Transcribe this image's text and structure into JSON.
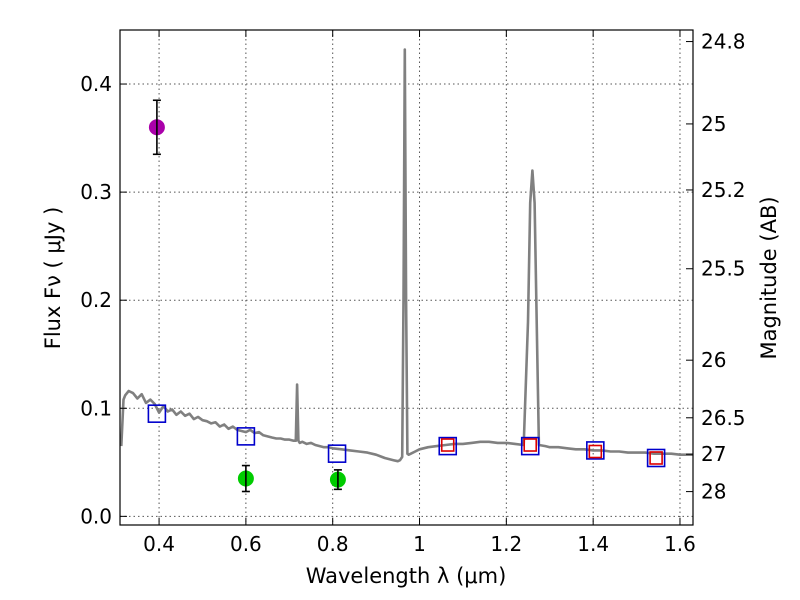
{
  "chart_data": {
    "type": "line",
    "title": "",
    "xlabel": "Wavelength  λ (μm)",
    "ylabel": "Flux  Fν  ( μJy )",
    "ylabel_right": "Magnitude (AB)",
    "xlim": [
      0.31,
      1.63
    ],
    "ylim": [
      -0.008,
      0.45
    ],
    "grid": true,
    "x_ticks": [
      0.4,
      0.6,
      0.8,
      1.0,
      1.2,
      1.4,
      1.6
    ],
    "x_tick_labels": [
      "0.4",
      "0.6",
      "0.8",
      "1",
      "1.2",
      "1.4",
      "1.6"
    ],
    "y_ticks": [
      0.0,
      0.1,
      0.2,
      0.3,
      0.4
    ],
    "y_tick_labels": [
      "0.0",
      "0.1",
      "0.2",
      "0.3",
      "0.4"
    ],
    "right_ticks": [
      {
        "label": "24.8",
        "flux": 0.4393
      },
      {
        "label": "25",
        "flux": 0.3631
      },
      {
        "label": "25.2",
        "flux": 0.302
      },
      {
        "label": "25.5",
        "flux": 0.2291
      },
      {
        "label": "26",
        "flux": 0.1445
      },
      {
        "label": "26.5",
        "flux": 0.0912
      },
      {
        "label": "27",
        "flux": 0.0575
      },
      {
        "label": "28",
        "flux": 0.0229
      }
    ],
    "series": [
      {
        "name": "model spectrum",
        "kind": "line",
        "color": "#808080",
        "x": [
          0.313,
          0.318,
          0.322,
          0.33,
          0.34,
          0.35,
          0.36,
          0.37,
          0.38,
          0.39,
          0.4,
          0.41,
          0.42,
          0.43,
          0.44,
          0.45,
          0.46,
          0.47,
          0.48,
          0.49,
          0.5,
          0.51,
          0.52,
          0.53,
          0.54,
          0.55,
          0.56,
          0.57,
          0.58,
          0.59,
          0.6,
          0.61,
          0.62,
          0.63,
          0.64,
          0.65,
          0.66,
          0.67,
          0.68,
          0.69,
          0.7,
          0.71,
          0.715,
          0.718,
          0.721,
          0.724,
          0.73,
          0.74,
          0.75,
          0.76,
          0.77,
          0.78,
          0.79,
          0.8,
          0.82,
          0.84,
          0.86,
          0.88,
          0.9,
          0.92,
          0.94,
          0.95,
          0.955,
          0.96,
          0.963,
          0.966,
          0.969,
          0.972,
          0.975,
          0.98,
          0.99,
          1.0,
          1.02,
          1.04,
          1.06,
          1.08,
          1.1,
          1.12,
          1.14,
          1.16,
          1.18,
          1.2,
          1.22,
          1.24,
          1.25,
          1.255,
          1.26,
          1.265,
          1.27,
          1.275,
          1.29,
          1.3,
          1.32,
          1.34,
          1.36,
          1.38,
          1.4,
          1.42,
          1.44,
          1.46,
          1.48,
          1.5,
          1.52,
          1.54,
          1.56,
          1.58,
          1.6,
          1.63
        ],
        "y": [
          0.065,
          0.108,
          0.112,
          0.116,
          0.114,
          0.109,
          0.113,
          0.105,
          0.108,
          0.104,
          0.096,
          0.102,
          0.097,
          0.099,
          0.094,
          0.097,
          0.093,
          0.095,
          0.09,
          0.092,
          0.089,
          0.088,
          0.086,
          0.087,
          0.083,
          0.085,
          0.081,
          0.083,
          0.08,
          0.079,
          0.078,
          0.08,
          0.077,
          0.078,
          0.075,
          0.074,
          0.073,
          0.072,
          0.072,
          0.071,
          0.071,
          0.07,
          0.07,
          0.122,
          0.07,
          0.068,
          0.069,
          0.067,
          0.068,
          0.066,
          0.065,
          0.064,
          0.064,
          0.063,
          0.062,
          0.061,
          0.06,
          0.059,
          0.057,
          0.054,
          0.052,
          0.051,
          0.052,
          0.055,
          0.2,
          0.432,
          0.2,
          0.058,
          0.057,
          0.058,
          0.06,
          0.062,
          0.064,
          0.065,
          0.066,
          0.067,
          0.067,
          0.068,
          0.069,
          0.069,
          0.068,
          0.068,
          0.067,
          0.066,
          0.18,
          0.29,
          0.32,
          0.29,
          0.18,
          0.066,
          0.065,
          0.064,
          0.064,
          0.063,
          0.062,
          0.062,
          0.061,
          0.061,
          0.06,
          0.06,
          0.059,
          0.059,
          0.059,
          0.058,
          0.058,
          0.058,
          0.057,
          0.057
        ]
      },
      {
        "name": "observed photometry (purple)",
        "kind": "points",
        "color": "#aa00aa",
        "points": [
          {
            "x": 0.395,
            "y": 0.36,
            "err": 0.025
          }
        ]
      },
      {
        "name": "observed photometry (green)",
        "kind": "points",
        "color": "#00cc00",
        "points": [
          {
            "x": 0.6,
            "y": 0.035,
            "err": 0.012
          },
          {
            "x": 0.812,
            "y": 0.034,
            "err": 0.009
          }
        ]
      },
      {
        "name": "model photometry (blue squares)",
        "kind": "squares",
        "color": "#0000cc",
        "points": [
          {
            "x": 0.395,
            "y": 0.095
          },
          {
            "x": 0.6,
            "y": 0.074
          },
          {
            "x": 0.81,
            "y": 0.058
          },
          {
            "x": 1.065,
            "y": 0.065
          },
          {
            "x": 1.255,
            "y": 0.065
          },
          {
            "x": 1.405,
            "y": 0.061
          },
          {
            "x": 1.545,
            "y": 0.054
          }
        ]
      },
      {
        "name": "model photometry (red squares)",
        "kind": "squares",
        "color": "#dd0000",
        "points": [
          {
            "x": 1.065,
            "y": 0.066
          },
          {
            "x": 1.255,
            "y": 0.066
          },
          {
            "x": 1.405,
            "y": 0.06
          },
          {
            "x": 1.545,
            "y": 0.054
          }
        ]
      }
    ]
  }
}
